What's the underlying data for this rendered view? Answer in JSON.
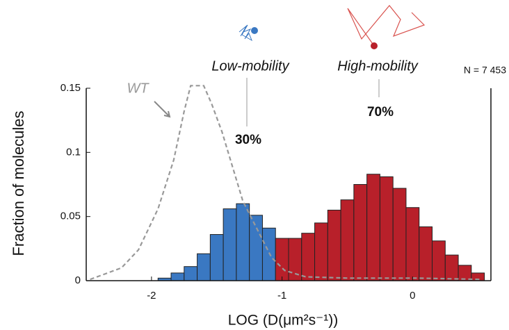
{
  "chart_data": {
    "type": "histogram",
    "ylabel": "Fraction of molecules",
    "xlabel": "LOG (D(μm²s⁻¹))",
    "xlim": [
      -2.5,
      0.6
    ],
    "ylim": [
      0,
      0.15
    ],
    "xticks": [
      -2,
      -1,
      0
    ],
    "yticks": [
      0,
      0.05,
      0.1,
      0.15
    ],
    "series": [
      {
        "name": "Low-mobility",
        "color": "#3a78c2",
        "bins": [
          -1.95,
          -1.85,
          -1.75,
          -1.65,
          -1.55,
          -1.45,
          -1.35,
          -1.25,
          -1.15,
          -1.05
        ],
        "values": [
          0.002,
          0.006,
          0.011,
          0.021,
          0.036,
          0.056,
          0.06,
          0.051,
          0.041
        ]
      },
      {
        "name": "High-mobility",
        "color": "#b8202a",
        "bins": [
          -1.05,
          -0.95,
          -0.85,
          -0.75,
          -0.65,
          -0.55,
          -0.45,
          -0.35,
          -0.25,
          -0.15,
          -0.05,
          0.05,
          0.15,
          0.25,
          0.35,
          0.45,
          0.55
        ],
        "values": [
          0.033,
          0.033,
          0.037,
          0.045,
          0.055,
          0.063,
          0.075,
          0.083,
          0.081,
          0.072,
          0.057,
          0.042,
          0.031,
          0.02,
          0.012,
          0.006
        ]
      }
    ],
    "lines": [
      {
        "name": "WT",
        "color": "#999999",
        "dashed": true,
        "x": [
          -2.47,
          -2.23,
          -2.1,
          -1.95,
          -1.83,
          -1.75,
          -1.7,
          -1.6,
          -1.54,
          -1.46,
          -1.38,
          -1.3,
          -1.19,
          -1.08,
          -0.98,
          -0.82,
          -0.5,
          0.04,
          0.52
        ],
        "values": [
          0.001,
          0.01,
          0.024,
          0.056,
          0.094,
          0.132,
          0.152,
          0.152,
          0.138,
          0.116,
          0.089,
          0.062,
          0.04,
          0.018,
          0.008,
          0.003,
          0.002,
          0.002,
          0.001
        ]
      }
    ],
    "annotations": [
      "30%",
      "70%",
      "N = 7 453"
    ]
  }
}
